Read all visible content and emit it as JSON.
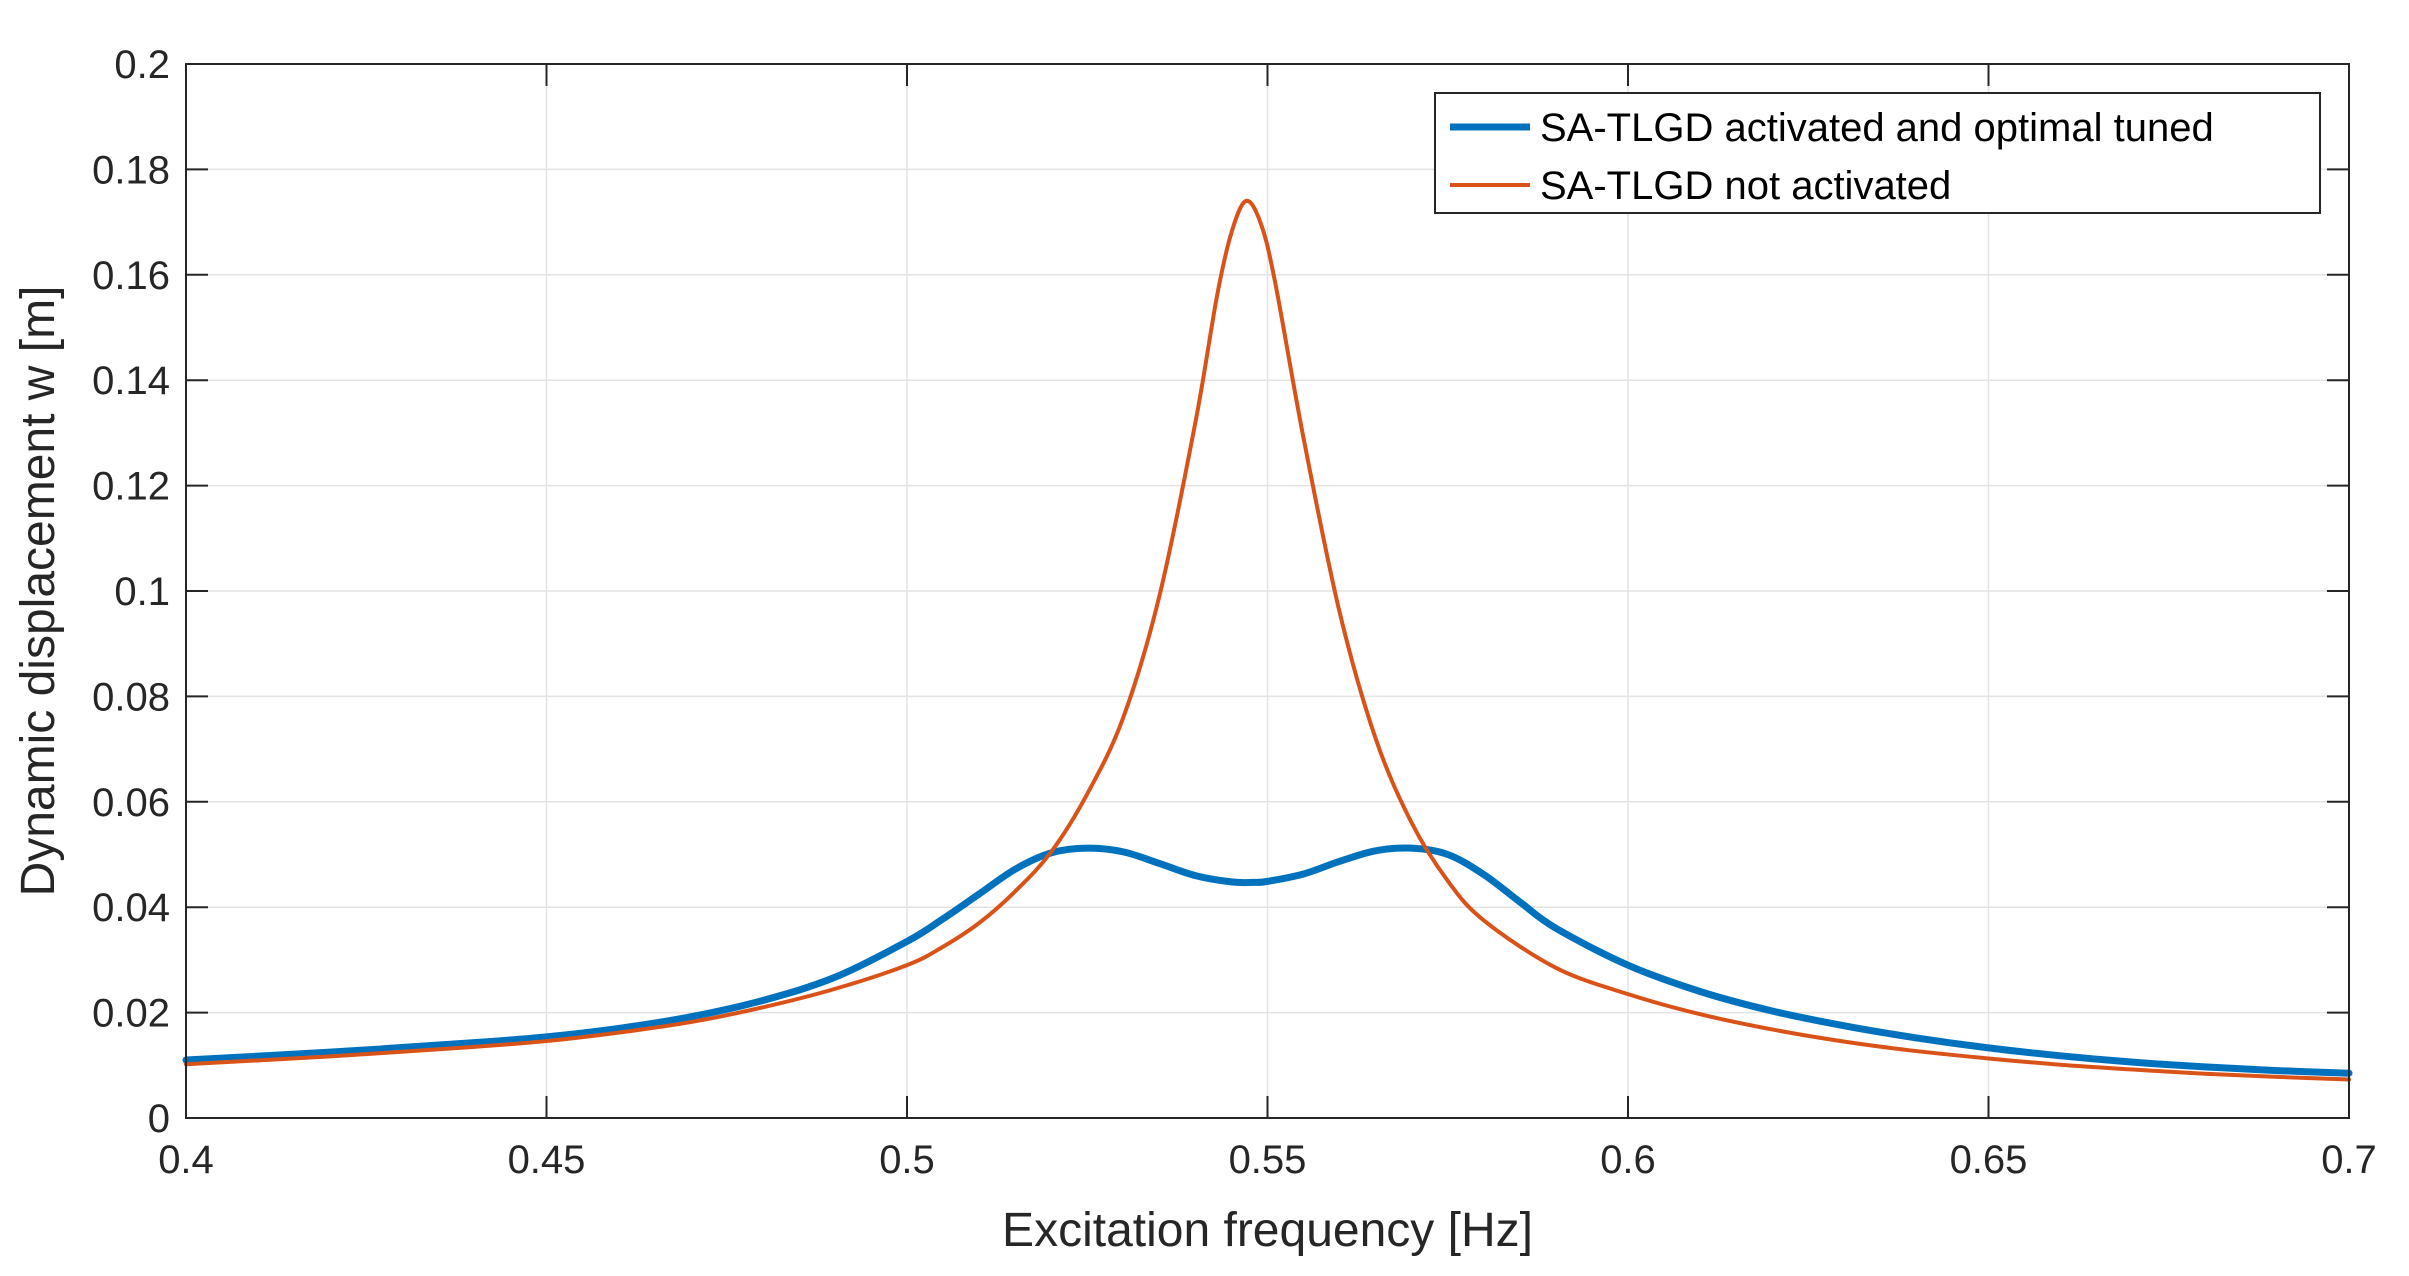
{
  "chart_data": {
    "type": "line",
    "title": "",
    "xlabel": "Excitation frequency [Hz]",
    "ylabel": "Dynamic displacement w [m]",
    "xlim": [
      0.4,
      0.7
    ],
    "ylim": [
      0,
      0.2
    ],
    "xticks": [
      0.4,
      0.45,
      0.5,
      0.55,
      0.6,
      0.65,
      0.7
    ],
    "xtick_labels": [
      "0.4",
      "0.45",
      "0.5",
      "0.55",
      "0.6",
      "0.65",
      "0.7"
    ],
    "yticks": [
      0,
      0.02,
      0.04,
      0.06,
      0.08,
      0.1,
      0.12,
      0.14,
      0.16,
      0.18,
      0.2
    ],
    "ytick_labels": [
      "0",
      "0.02",
      "0.04",
      "0.06",
      "0.08",
      "0.1",
      "0.12",
      "0.14",
      "0.16",
      "0.18",
      "0.2"
    ],
    "grid": true,
    "legend_position": "top-right",
    "series": [
      {
        "name": "SA-TLGD activated and optimal tuned",
        "color": "#0072BD",
        "line_weight": "thick",
        "points": [
          [
            0.4,
            0.011
          ],
          [
            0.42,
            0.0125
          ],
          [
            0.44,
            0.0143
          ],
          [
            0.45,
            0.0154
          ],
          [
            0.46,
            0.017
          ],
          [
            0.47,
            0.0192
          ],
          [
            0.48,
            0.0223
          ],
          [
            0.49,
            0.0267
          ],
          [
            0.5,
            0.0335
          ],
          [
            0.505,
            0.0378
          ],
          [
            0.51,
            0.0425
          ],
          [
            0.515,
            0.0472
          ],
          [
            0.52,
            0.0503
          ],
          [
            0.525,
            0.0512
          ],
          [
            0.53,
            0.0505
          ],
          [
            0.535,
            0.0483
          ],
          [
            0.54,
            0.046
          ],
          [
            0.545,
            0.0448
          ],
          [
            0.548,
            0.0447
          ],
          [
            0.55,
            0.0449
          ],
          [
            0.555,
            0.0463
          ],
          [
            0.56,
            0.0487
          ],
          [
            0.565,
            0.0507
          ],
          [
            0.57,
            0.0512
          ],
          [
            0.575,
            0.05
          ],
          [
            0.58,
            0.0462
          ],
          [
            0.585,
            0.041
          ],
          [
            0.59,
            0.036
          ],
          [
            0.6,
            0.029
          ],
          [
            0.61,
            0.024
          ],
          [
            0.62,
            0.0203
          ],
          [
            0.63,
            0.0175
          ],
          [
            0.64,
            0.0152
          ],
          [
            0.65,
            0.0133
          ],
          [
            0.66,
            0.0118
          ],
          [
            0.67,
            0.0106
          ],
          [
            0.68,
            0.0097
          ],
          [
            0.69,
            0.009
          ],
          [
            0.7,
            0.0085
          ]
        ]
      },
      {
        "name": "SA-TLGD not activated",
        "color": "#D95319",
        "line_weight": "thin",
        "points": [
          [
            0.4,
            0.0102
          ],
          [
            0.42,
            0.0117
          ],
          [
            0.44,
            0.0135
          ],
          [
            0.45,
            0.0146
          ],
          [
            0.46,
            0.0162
          ],
          [
            0.47,
            0.0182
          ],
          [
            0.48,
            0.021
          ],
          [
            0.49,
            0.0245
          ],
          [
            0.5,
            0.029
          ],
          [
            0.505,
            0.0325
          ],
          [
            0.51,
            0.037
          ],
          [
            0.515,
            0.043
          ],
          [
            0.52,
            0.0505
          ],
          [
            0.525,
            0.0615
          ],
          [
            0.53,
            0.076
          ],
          [
            0.535,
            0.099
          ],
          [
            0.54,
            0.132
          ],
          [
            0.543,
            0.156
          ],
          [
            0.545,
            0.168
          ],
          [
            0.547,
            0.174
          ],
          [
            0.549,
            0.17
          ],
          [
            0.551,
            0.159
          ],
          [
            0.555,
            0.129
          ],
          [
            0.56,
            0.096
          ],
          [
            0.565,
            0.072
          ],
          [
            0.57,
            0.056
          ],
          [
            0.575,
            0.045
          ],
          [
            0.58,
            0.0375
          ],
          [
            0.59,
            0.0285
          ],
          [
            0.6,
            0.0235
          ],
          [
            0.61,
            0.0197
          ],
          [
            0.62,
            0.0168
          ],
          [
            0.63,
            0.0145
          ],
          [
            0.64,
            0.0127
          ],
          [
            0.65,
            0.0113
          ],
          [
            0.66,
            0.0101
          ],
          [
            0.67,
            0.0092
          ],
          [
            0.68,
            0.0084
          ],
          [
            0.69,
            0.0078
          ],
          [
            0.7,
            0.0073
          ]
        ]
      }
    ]
  }
}
